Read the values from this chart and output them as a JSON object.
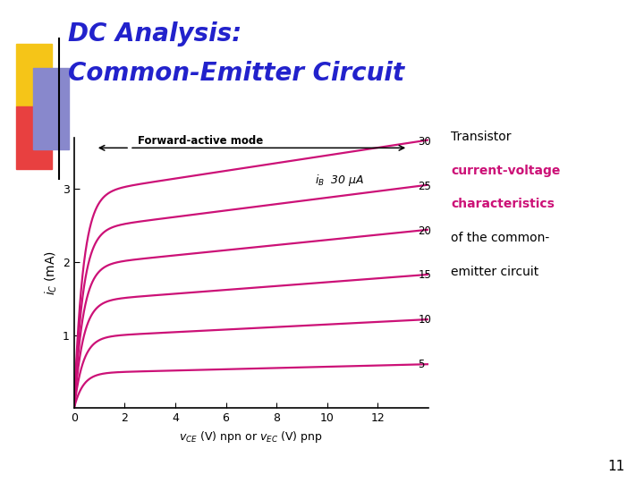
{
  "title_line1": "DC Analysis:",
  "title_line2": "Common-Emitter Circuit",
  "title_color": "#2222CC",
  "curve_color": "#CC1177",
  "ylabel": "$i_C$ (mA)",
  "xlim": [
    0,
    14
  ],
  "ylim": [
    0,
    3.7
  ],
  "xticks": [
    0,
    2,
    4,
    6,
    8,
    10,
    12
  ],
  "yticks": [
    1,
    2,
    3
  ],
  "iB_values": [
    5,
    10,
    15,
    20,
    25,
    30
  ],
  "iB_sat_currents": [
    0.48,
    0.97,
    1.46,
    1.95,
    2.44,
    2.93
  ],
  "forward_active_label": "Forward-active mode",
  "bg_color": "#FFFFFF",
  "note_text_line1": "Transistor",
  "note_text_line2": "current-voltage",
  "note_text_line3": "characteristics",
  "note_text_line4": "of the common-",
  "note_text_line5": "emitter circuit",
  "page_number": "11",
  "sq_yellow": "#F5C518",
  "sq_red": "#E84040",
  "sq_blue": "#8888CC",
  "title_fontsize": 20
}
